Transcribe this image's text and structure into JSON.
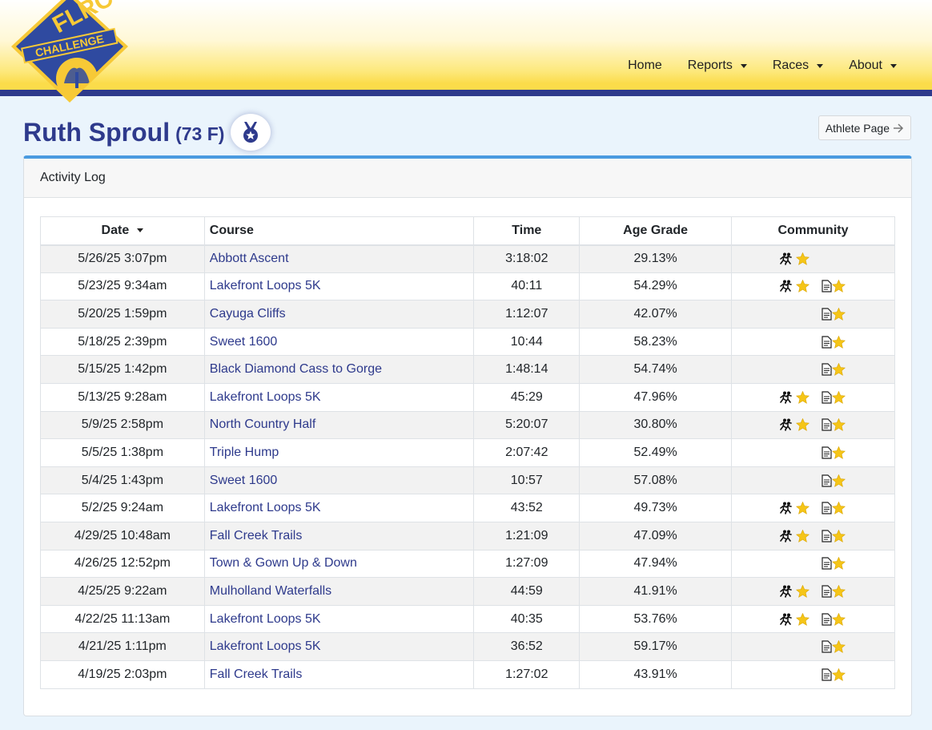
{
  "brand": {
    "logo_top": "FLRC",
    "logo_banner": "CHALLENGE"
  },
  "nav": {
    "home": "Home",
    "reports": "Reports",
    "races": "Races",
    "about": "About"
  },
  "athlete": {
    "name": "Ruth Sproul",
    "meta": "(73 F)"
  },
  "athlete_button": "Athlete Page",
  "card": {
    "title": "Activity Log"
  },
  "table": {
    "headers": {
      "date": "Date",
      "course": "Course",
      "time": "Time",
      "age_grade": "Age Grade",
      "community": "Community"
    },
    "rows": [
      {
        "date": "5/26/25 3:07pm",
        "course": "Abbott Ascent",
        "time": "3:18:02",
        "age_grade": "29.13%",
        "group_run": true,
        "report": false
      },
      {
        "date": "5/23/25 9:34am",
        "course": "Lakefront Loops 5K",
        "time": "40:11",
        "age_grade": "54.29%",
        "group_run": true,
        "report": true
      },
      {
        "date": "5/20/25 1:59pm",
        "course": "Cayuga Cliffs",
        "time": "1:12:07",
        "age_grade": "42.07%",
        "group_run": false,
        "report": true
      },
      {
        "date": "5/18/25 2:39pm",
        "course": "Sweet 1600",
        "time": "10:44",
        "age_grade": "58.23%",
        "group_run": false,
        "report": true
      },
      {
        "date": "5/15/25 1:42pm",
        "course": "Black Diamond Cass to Gorge",
        "time": "1:48:14",
        "age_grade": "54.74%",
        "group_run": false,
        "report": true
      },
      {
        "date": "5/13/25 9:28am",
        "course": "Lakefront Loops 5K",
        "time": "45:29",
        "age_grade": "47.96%",
        "group_run": true,
        "report": true
      },
      {
        "date": "5/9/25 2:58pm",
        "course": "North Country Half",
        "time": "5:20:07",
        "age_grade": "30.80%",
        "group_run": true,
        "report": true
      },
      {
        "date": "5/5/25 1:38pm",
        "course": "Triple Hump",
        "time": "2:07:42",
        "age_grade": "52.49%",
        "group_run": false,
        "report": true
      },
      {
        "date": "5/4/25 1:43pm",
        "course": "Sweet 1600",
        "time": "10:57",
        "age_grade": "57.08%",
        "group_run": false,
        "report": true
      },
      {
        "date": "5/2/25 9:24am",
        "course": "Lakefront Loops 5K",
        "time": "43:52",
        "age_grade": "49.73%",
        "group_run": true,
        "report": true
      },
      {
        "date": "4/29/25 10:48am",
        "course": "Fall Creek Trails",
        "time": "1:21:09",
        "age_grade": "47.09%",
        "group_run": true,
        "report": true
      },
      {
        "date": "4/26/25 12:52pm",
        "course": "Town & Gown Up & Down",
        "time": "1:27:09",
        "age_grade": "47.94%",
        "group_run": false,
        "report": true
      },
      {
        "date": "4/25/25 9:22am",
        "course": "Mulholland Waterfalls",
        "time": "44:59",
        "age_grade": "41.91%",
        "group_run": true,
        "report": true
      },
      {
        "date": "4/22/25 11:13am",
        "course": "Lakefront Loops 5K",
        "time": "40:35",
        "age_grade": "53.76%",
        "group_run": true,
        "report": true
      },
      {
        "date": "4/21/25 1:11pm",
        "course": "Lakefront Loops 5K",
        "time": "36:52",
        "age_grade": "59.17%",
        "group_run": false,
        "report": true
      },
      {
        "date": "4/19/25 2:03pm",
        "course": "Fall Creek Trails",
        "time": "1:27:02",
        "age_grade": "43.91%",
        "group_run": false,
        "report": true
      }
    ]
  },
  "colors": {
    "primary": "#2e3a8c",
    "accent": "#4a9be0",
    "star": "#f5c518",
    "header_yellow": "#fbdc4a"
  },
  "icons": {
    "group_run": "runners-star-icon",
    "report": "document-star-icon",
    "medal": "medal-icon",
    "arrow": "arrow-right-icon"
  }
}
